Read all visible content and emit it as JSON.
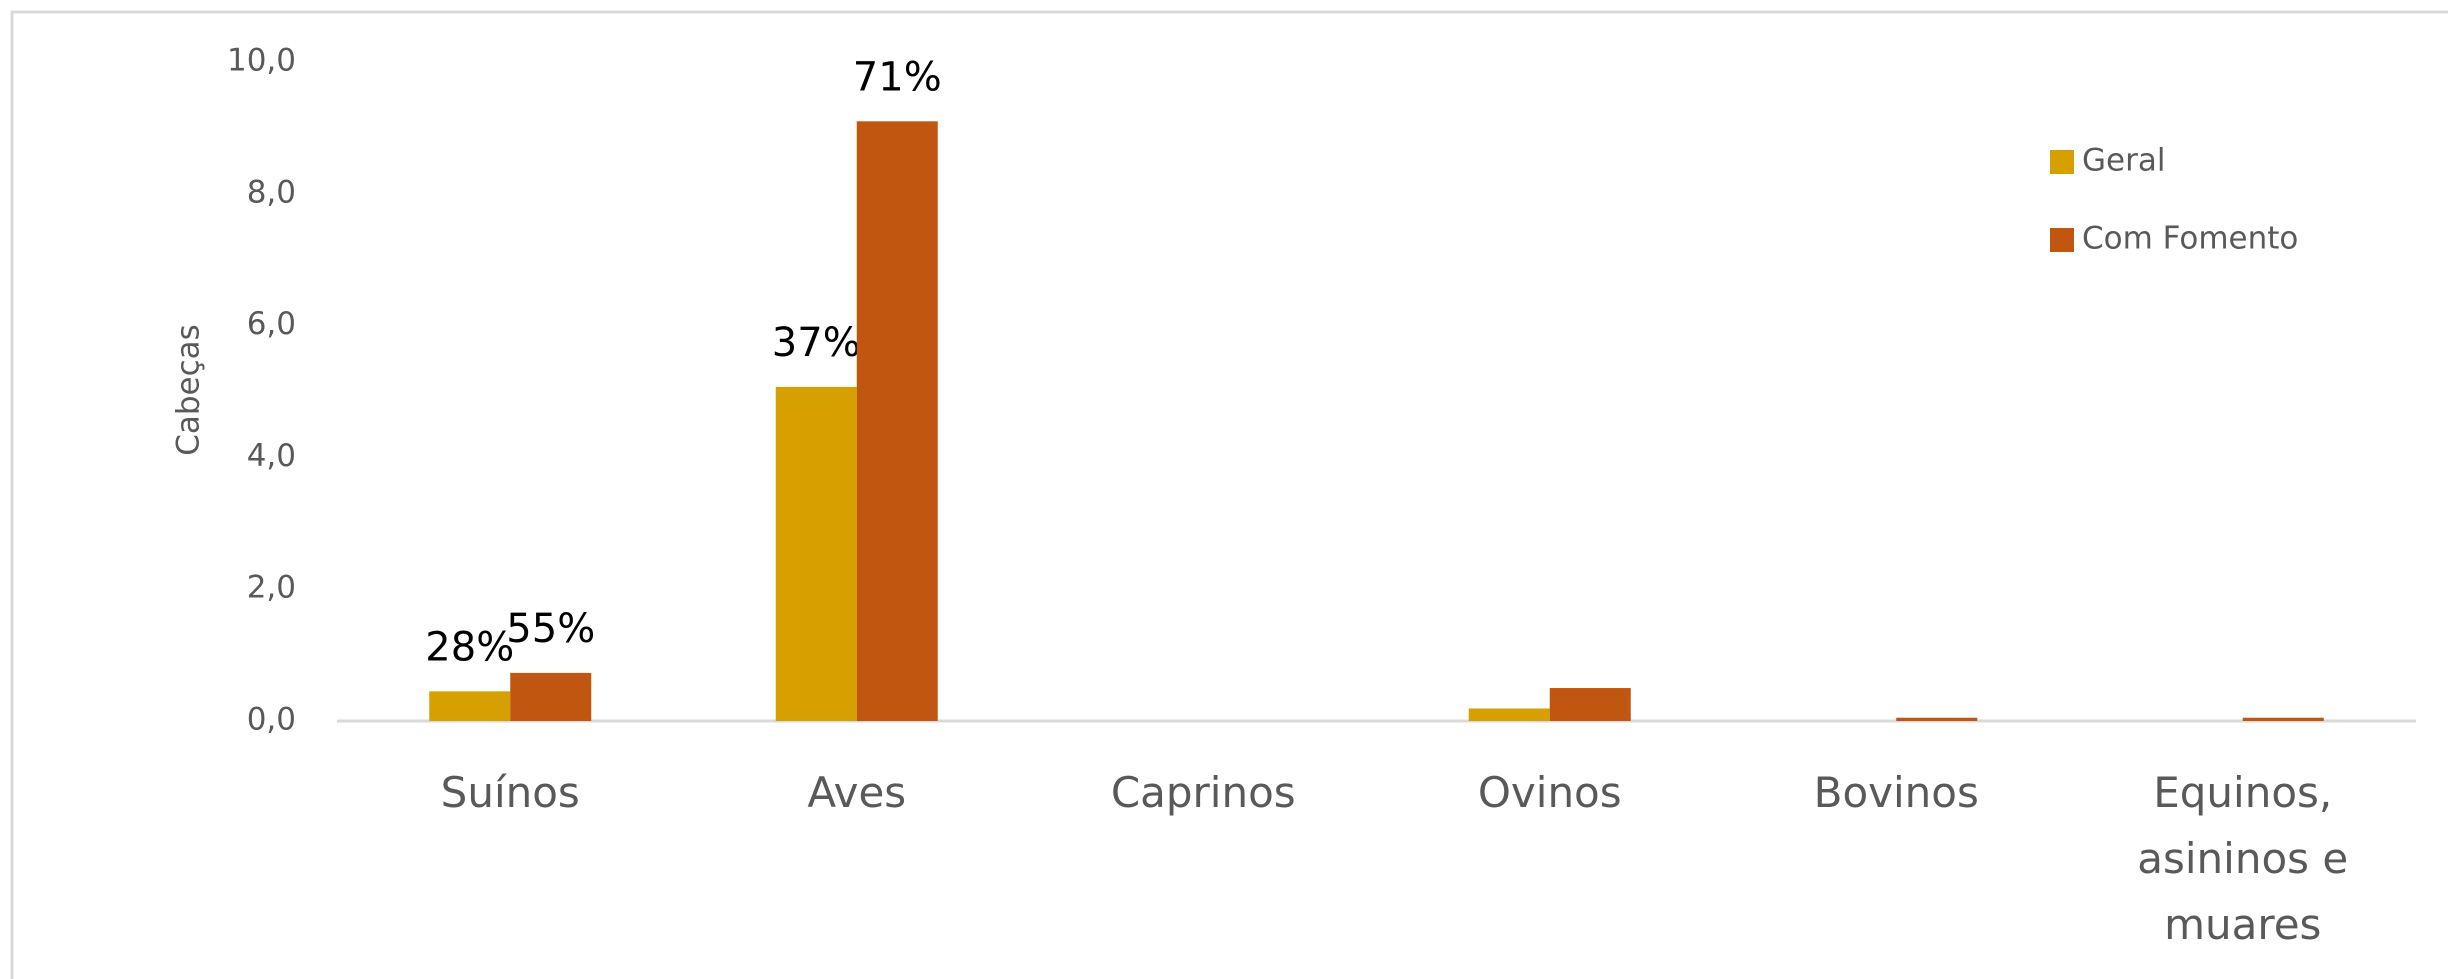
{
  "chart_data": {
    "type": "bar",
    "y_label": "Cabeças",
    "categories": [
      "Suínos",
      "Aves",
      "Caprinos",
      "Ovinos",
      "Bovinos",
      "Equinos, asininos e muares"
    ],
    "series": [
      {
        "name": "Geral",
        "color": "#d6a100",
        "values": [
          0.45,
          5.07,
          0,
          0.19,
          0,
          0
        ],
        "labels": [
          "28%",
          "37%",
          null,
          null,
          null,
          null
        ]
      },
      {
        "name": "Com Fomento",
        "color": "#c0560f",
        "values": [
          0.73,
          9.1,
          0,
          0.5,
          0.05,
          0.05
        ],
        "labels": [
          "55%",
          "71%",
          null,
          null,
          null,
          null
        ]
      }
    ],
    "ylim": [
      0,
      10
    ],
    "yticks": [
      {
        "value": 0,
        "label": "0,0"
      },
      {
        "value": 2,
        "label": "2,0"
      },
      {
        "value": 4,
        "label": "4,0"
      },
      {
        "value": 6,
        "label": "6,0"
      },
      {
        "value": 8,
        "label": "8,0"
      },
      {
        "value": 10,
        "label": "10,0"
      }
    ],
    "legend": "upper right"
  }
}
